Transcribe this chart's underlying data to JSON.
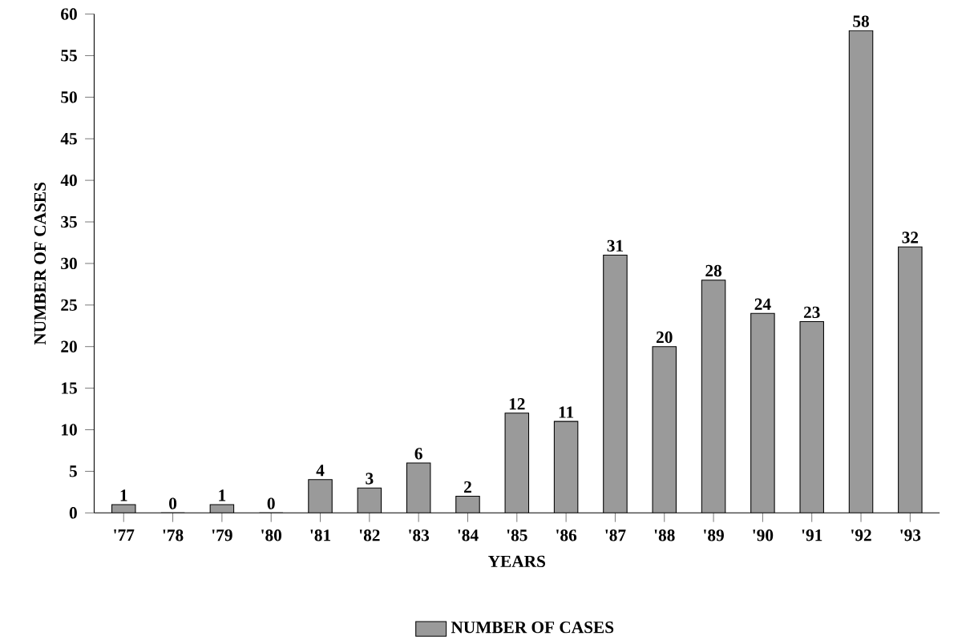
{
  "chart_data": {
    "type": "bar",
    "xlabel": "YEARS",
    "ylabel": "NUMBER OF CASES",
    "categories": [
      "'77",
      "'78",
      "'79",
      "'80",
      "'81",
      "'82",
      "'83",
      "'84",
      "'85",
      "'86",
      "'87",
      "'88",
      "'89",
      "'90",
      "'91",
      "'92",
      "'93"
    ],
    "series": [
      {
        "name": "NUMBER OF CASES",
        "color": "#9a9a9a",
        "values": [
          1,
          0,
          1,
          0,
          4,
          3,
          6,
          2,
          12,
          11,
          31,
          20,
          28,
          24,
          23,
          58,
          32
        ]
      }
    ],
    "ylim": [
      0,
      60
    ],
    "yticks": [
      0,
      5,
      10,
      15,
      20,
      25,
      30,
      35,
      40,
      45,
      50,
      55,
      60
    ],
    "data_labels": true,
    "legend": "bottom",
    "grid": false
  }
}
